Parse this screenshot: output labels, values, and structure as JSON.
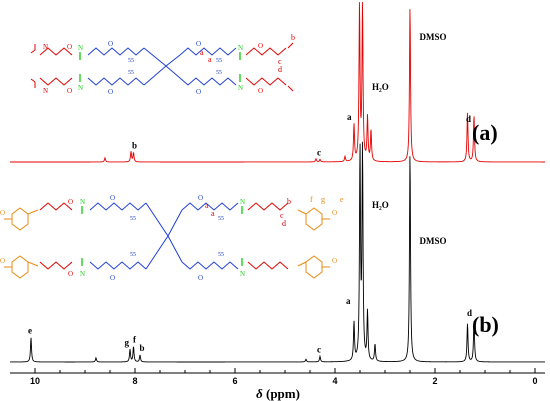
{
  "chart_data": [
    {
      "type": "line",
      "panel_label": "(a)",
      "color": "#e60000",
      "xlim": [
        10.5,
        -0.2
      ],
      "peaks": [
        {
          "x": 8.6,
          "h": 0.08
        },
        {
          "x": 8.08,
          "h": 0.2
        },
        {
          "x": 8.03,
          "h": 0.18
        },
        {
          "x": 4.38,
          "h": 0.06
        },
        {
          "x": 4.3,
          "h": 0.05
        },
        {
          "x": 3.8,
          "h": 0.1
        },
        {
          "x": 3.62,
          "h": 0.7
        },
        {
          "x": 3.51,
          "h": 3.0
        },
        {
          "x": 3.45,
          "h": 3.0
        },
        {
          "x": 3.35,
          "h": 0.85
        },
        {
          "x": 3.28,
          "h": 0.6
        },
        {
          "x": 2.5,
          "h": 3.0
        },
        {
          "x": 1.35,
          "h": 0.95
        },
        {
          "x": 1.22,
          "h": 0.9
        }
      ],
      "annotations": [
        {
          "text": "b",
          "x": 8.0
        },
        {
          "text": "c",
          "x": 4.3
        },
        {
          "text": "a",
          "x": 3.7
        },
        {
          "text": "H₂O",
          "x": 3.2
        },
        {
          "text": "d",
          "x": 1.32
        },
        {
          "text": "DMSO",
          "x": 2.25
        }
      ]
    },
    {
      "type": "line",
      "panel_label": "(b)",
      "color": "#000000",
      "xlim": [
        10.5,
        -0.2
      ],
      "peaks": [
        {
          "x": 10.08,
          "h": 0.35
        },
        {
          "x": 8.78,
          "h": 0.06
        },
        {
          "x": 8.1,
          "h": 0.18
        },
        {
          "x": 8.03,
          "h": 0.22
        },
        {
          "x": 7.9,
          "h": 0.1
        },
        {
          "x": 4.58,
          "h": 0.04
        },
        {
          "x": 4.3,
          "h": 0.08
        },
        {
          "x": 3.62,
          "h": 0.55
        },
        {
          "x": 3.5,
          "h": 3.0
        },
        {
          "x": 3.45,
          "h": 3.0
        },
        {
          "x": 3.35,
          "h": 0.7
        },
        {
          "x": 3.2,
          "h": 0.25
        },
        {
          "x": 2.5,
          "h": 3.0
        },
        {
          "x": 1.35,
          "h": 0.55
        },
        {
          "x": 1.22,
          "h": 0.6
        }
      ],
      "annotations": [
        {
          "text": "e",
          "x": 10.08
        },
        {
          "text": "g",
          "x": 8.15
        },
        {
          "text": "f",
          "x": 7.98
        },
        {
          "text": "b",
          "x": 7.85
        },
        {
          "text": "c",
          "x": 4.3
        },
        {
          "text": "a",
          "x": 3.72
        },
        {
          "text": "H₂O",
          "x": 3.2
        },
        {
          "text": "d",
          "x": 1.3
        },
        {
          "text": "DMSO",
          "x": 2.25
        }
      ]
    }
  ],
  "xaxis": {
    "label_symbol": "δ",
    "label_unit": " (ppm)",
    "ticks": [
      10,
      8,
      6,
      4,
      2,
      0
    ]
  },
  "colors": {
    "red": "#e60000",
    "blue": "#1f3fd6",
    "green": "#22cc22",
    "orange": "#e88a10",
    "black": "#000000"
  }
}
